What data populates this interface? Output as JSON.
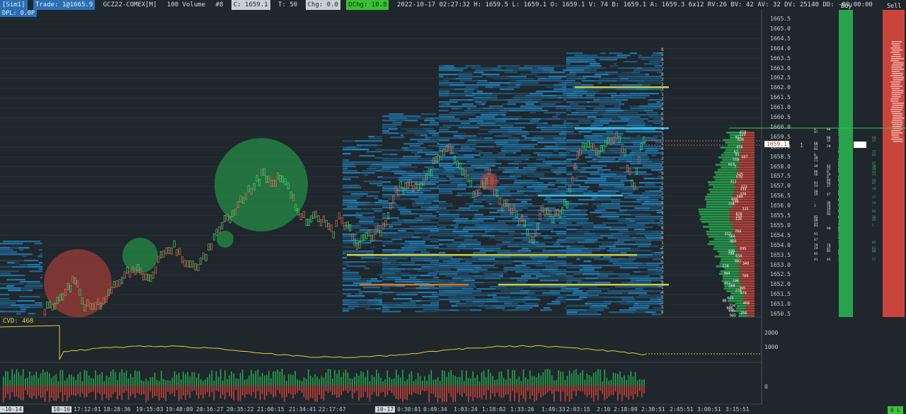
{
  "header": {
    "account_tag": "[Sim1]",
    "trade_tag": "Trade: 1@1665.9",
    "instrument": "GCZ22-COMEX[M]",
    "volume_setting": "100 Volume",
    "bar_count": "#8",
    "close_tag": "C: 1659.1",
    "ticks_tag": "T: 50",
    "change_tag": "Chg: 0.0",
    "dchange_tag": "DChg: 10.8",
    "bar_info": "2022-10-17 02:27:32 H: 1659.5 L: 1659.1 O: 1659.1 V: 74 B: 1659.1 A: 1659.3 6x12 RV:26 BV: 42 AV: 32 DV: 25140 DD: -00:00:00"
  },
  "dpl_tag": "DPL: 0.0P",
  "cvd_label": "CVD: 468",
  "columns": {
    "buy": "Buy",
    "sell": "Sell"
  },
  "price_axis": {
    "ticks": [
      "1665.5",
      "1665.0",
      "1664.5",
      "1664.0",
      "1663.5",
      "1663.0",
      "1662.5",
      "1662.0",
      "1661.5",
      "1661.0",
      "1660.5",
      "1660.0",
      "1659.5",
      "1659.0",
      "1658.5",
      "1658.0",
      "1657.5",
      "1657.0",
      "1656.5",
      "1656.0",
      "1655.5",
      "1655.0",
      "1654.5",
      "1654.0",
      "1653.5",
      "1653.0",
      "1652.5",
      "1652.0",
      "1651.5",
      "1651.0",
      "1650.5"
    ],
    "current_price": "1659.1",
    "dom_size": "1"
  },
  "cvd_axis": {
    "ticks": [
      "2000",
      "1000"
    ]
  },
  "volume_axis": {
    "ticks": [
      "0"
    ]
  },
  "time_axis": {
    "labels": [
      "-10-14",
      "10-16",
      "17:12:01",
      "18:28:36",
      "19:15:03",
      "19:48:09",
      "20:16:27",
      "20:35:22",
      "21:00:15",
      "21:34:41",
      "22:17:47",
      "10-17",
      "0:30:01",
      "0:49:34",
      "1:03:24",
      "1:18:02",
      "1:33:26",
      "1:49:33",
      "2:03:15",
      "2:10",
      "2:18:09",
      "2:30:51",
      "2:45:51",
      "3:00:51",
      "3:15:51"
    ],
    "scroll_badge": "4 L"
  },
  "colors": {
    "background": "#1f262c",
    "buy": "#27a34d",
    "sell": "#c9443a",
    "cvd_line": "#e0cb3a",
    "heatmap": "#1f8fd0"
  }
}
